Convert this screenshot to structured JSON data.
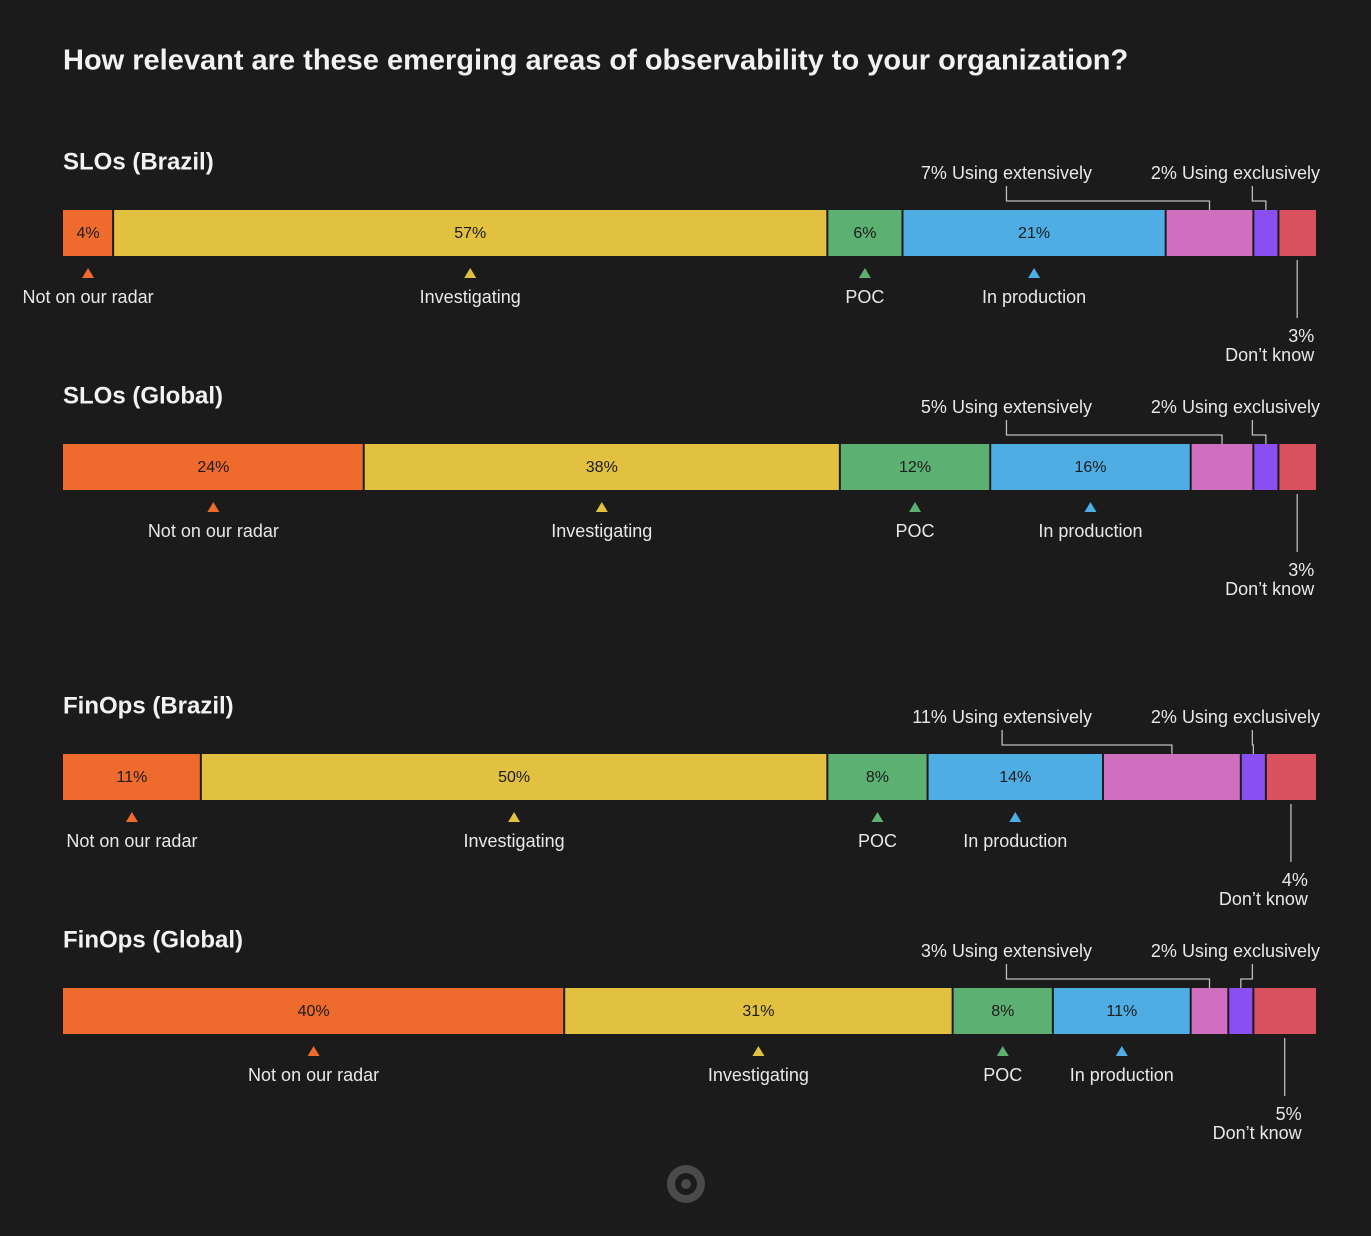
{
  "title": "How relevant are these emerging areas of observability to your organization?",
  "chart_data": [
    {
      "type": "bar",
      "stacked": true,
      "orientation": "horizontal",
      "title": "SLOs (Brazil)",
      "xlim": [
        0,
        100
      ],
      "categories": [
        "Not on our radar",
        "Investigating",
        "POC",
        "In production",
        "Using extensively",
        "Using exclusively",
        "Don’t know"
      ],
      "values": [
        4,
        57,
        6,
        21,
        7,
        2,
        3
      ],
      "value_labels": [
        "4%",
        "57%",
        "6%",
        "21%",
        "7%",
        "2%",
        "3%"
      ],
      "colors": [
        "#ee6a2d",
        "#e2c040",
        "#5bb072",
        "#4eaee3",
        "#d06fc0",
        "#8a4ff0",
        "#d9505f"
      ]
    },
    {
      "type": "bar",
      "stacked": true,
      "orientation": "horizontal",
      "title": "SLOs (Global)",
      "xlim": [
        0,
        100
      ],
      "categories": [
        "Not on our radar",
        "Investigating",
        "POC",
        "In production",
        "Using extensively",
        "Using exclusively",
        "Don’t know"
      ],
      "values": [
        24,
        38,
        12,
        16,
        5,
        2,
        3
      ],
      "value_labels": [
        "24%",
        "38%",
        "12%",
        "16%",
        "5%",
        "2%",
        "3%"
      ],
      "colors": [
        "#ee6a2d",
        "#e2c040",
        "#5bb072",
        "#4eaee3",
        "#d06fc0",
        "#8a4ff0",
        "#d9505f"
      ]
    },
    {
      "type": "bar",
      "stacked": true,
      "orientation": "horizontal",
      "title": "FinOps (Brazil)",
      "xlim": [
        0,
        100
      ],
      "categories": [
        "Not on our radar",
        "Investigating",
        "POC",
        "In production",
        "Using extensively",
        "Using exclusively",
        "Don’t know"
      ],
      "values": [
        11,
        50,
        8,
        14,
        11,
        2,
        4
      ],
      "value_labels": [
        "11%",
        "50%",
        "8%",
        "14%",
        "11%",
        "2%",
        "4%"
      ],
      "colors": [
        "#ee6a2d",
        "#e2c040",
        "#5bb072",
        "#4eaee3",
        "#d06fc0",
        "#8a4ff0",
        "#d9505f"
      ]
    },
    {
      "type": "bar",
      "stacked": true,
      "orientation": "horizontal",
      "title": "FinOps (Global)",
      "xlim": [
        0,
        100
      ],
      "categories": [
        "Not on our radar",
        "Investigating",
        "POC",
        "In production",
        "Using extensively",
        "Using exclusively",
        "Don’t know"
      ],
      "values": [
        40,
        31,
        8,
        11,
        3,
        2,
        5
      ],
      "value_labels": [
        "40%",
        "31%",
        "8%",
        "11%",
        "3%",
        "2%",
        "5%"
      ],
      "colors": [
        "#ee6a2d",
        "#e2c040",
        "#5bb072",
        "#4eaee3",
        "#d06fc0",
        "#8a4ff0",
        "#d9505f"
      ]
    }
  ]
}
